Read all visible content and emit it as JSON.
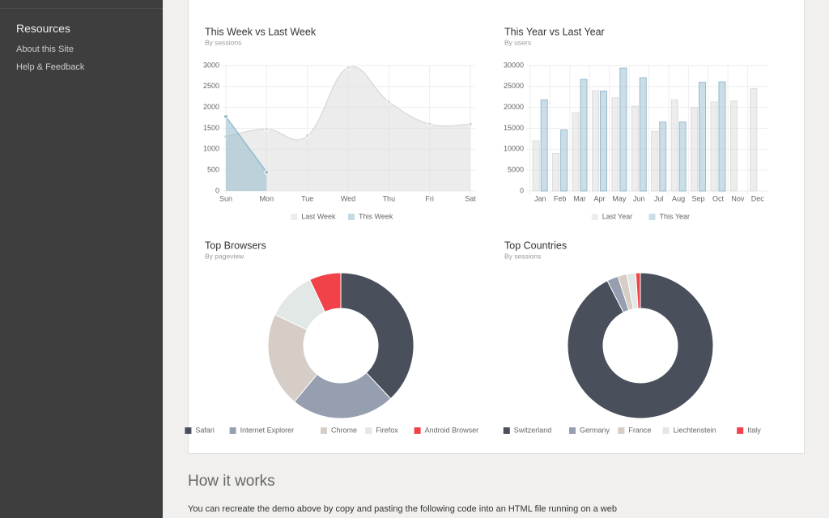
{
  "sidebar": {
    "title": "Resources",
    "links": [
      "About this Site",
      "Help & Feedback"
    ]
  },
  "chart_data": [
    {
      "type": "line",
      "title": "This Week vs Last Week",
      "subtitle": "By sessions",
      "categories": [
        "Sun",
        "Mon",
        "Tue",
        "Wed",
        "Thu",
        "Fri",
        "Sat"
      ],
      "series": [
        {
          "name": "Last Week",
          "color": "#dcdcdc",
          "values": [
            1300,
            1480,
            1320,
            2950,
            2130,
            1600,
            1600
          ]
        },
        {
          "name": "This Week",
          "color": "#97bbcd",
          "values": [
            1780,
            450,
            null,
            null,
            null,
            null,
            null
          ]
        }
      ],
      "ylim": [
        0,
        3000
      ],
      "yticks": [
        0,
        500,
        1000,
        1500,
        2000,
        2500,
        3000
      ],
      "grid": true
    },
    {
      "type": "bar",
      "title": "This Year vs Last Year",
      "subtitle": "By users",
      "categories": [
        "Jan",
        "Feb",
        "Mar",
        "Apr",
        "May",
        "Jun",
        "Jul",
        "Aug",
        "Sep",
        "Oct",
        "Nov",
        "Dec"
      ],
      "series": [
        {
          "name": "Last Year",
          "color": "#dcdcdc",
          "values": [
            12000,
            9000,
            18700,
            24000,
            22300,
            20300,
            14300,
            21800,
            20000,
            21300,
            21500,
            24500
          ]
        },
        {
          "name": "This Year",
          "color": "#97bbcd",
          "values": [
            21800,
            14600,
            26700,
            23900,
            29400,
            27100,
            16500,
            16500,
            26000,
            26100,
            null,
            null
          ]
        }
      ],
      "ylim": [
        0,
        30000
      ],
      "yticks": [
        0,
        5000,
        10000,
        15000,
        20000,
        25000,
        30000
      ],
      "grid": true
    },
    {
      "type": "doughnut",
      "title": "Top Browsers",
      "subtitle": "By pageview",
      "categories": [
        "Safari",
        "Internet Explorer",
        "Chrome",
        "Firefox",
        "Android Browser"
      ],
      "values": [
        38,
        23,
        21,
        11,
        7
      ],
      "colors": [
        "#4a4f5c",
        "#969fb0",
        "#d5cdc6",
        "#e2e8e6",
        "#f1424a"
      ]
    },
    {
      "type": "doughnut",
      "title": "Top Countries",
      "subtitle": "By sessions",
      "categories": [
        "Switzerland",
        "Germany",
        "France",
        "Liechtenstein",
        "Italy"
      ],
      "values": [
        92.5,
        2.5,
        2,
        2,
        1
      ],
      "colors": [
        "#4a4f5c",
        "#969fb0",
        "#d5cdc6",
        "#e2e8e6",
        "#f1424a"
      ]
    }
  ],
  "section": {
    "heading": "How it works",
    "text": "You can recreate the demo above by copy and pasting the following code into an HTML file running on a web"
  }
}
